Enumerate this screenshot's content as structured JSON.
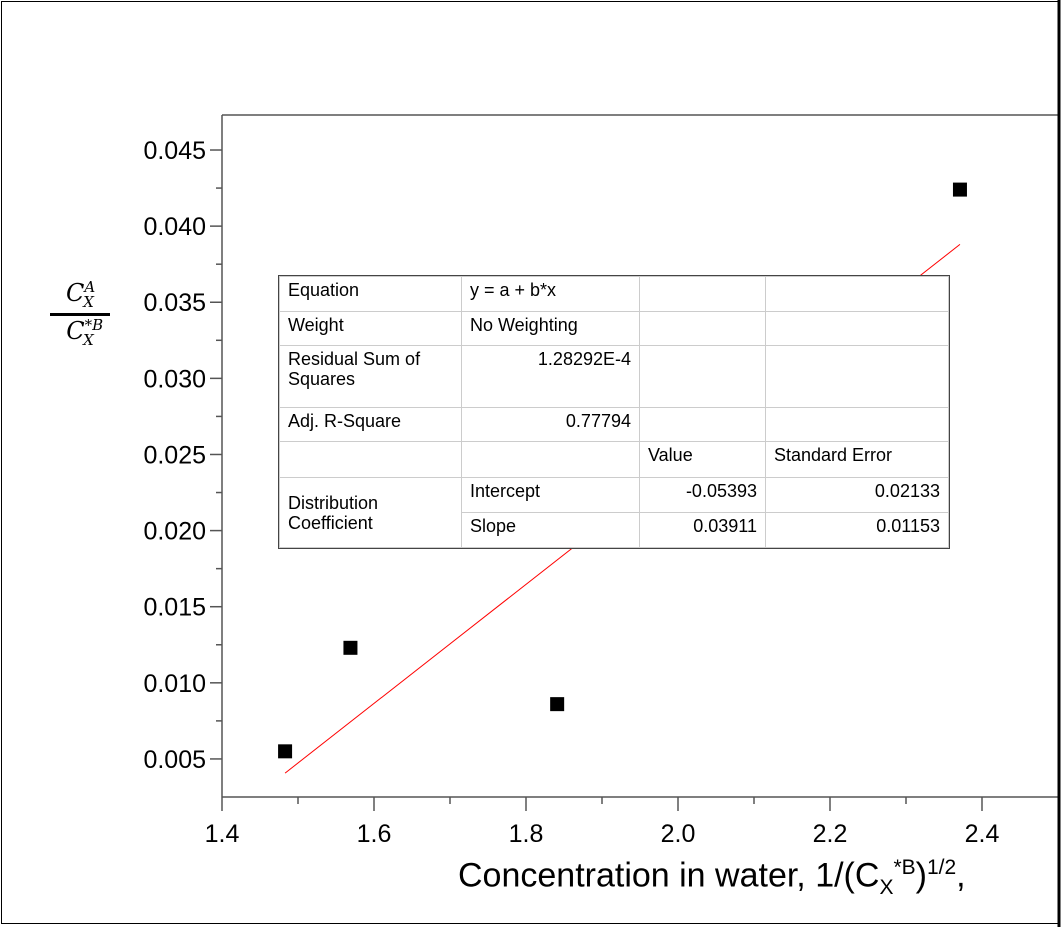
{
  "chart_data": {
    "type": "scatter",
    "xlabel": "Concentration in water, 1/(C",
    "xlabel_sub": "X",
    "xlabel_sup": "*B",
    "xlabel_tail": ")",
    "xlabel_exp": "1/2",
    "xlabel_end": ",",
    "ylabel": {
      "num_base": "C",
      "num_sub": "X",
      "num_sup": "A",
      "den_base": "C",
      "den_sub": "X",
      "den_sup": "*B"
    },
    "xlim": [
      1.4,
      2.5
    ],
    "ylim": [
      0.0025,
      0.0473
    ],
    "x_ticks": [
      "1.4",
      "1.6",
      "1.8",
      "2.0",
      "2.2",
      "2.4"
    ],
    "y_ticks": [
      "0.005",
      "0.010",
      "0.015",
      "0.020",
      "0.025",
      "0.030",
      "0.035",
      "0.040",
      "0.045"
    ],
    "grid": false,
    "points": [
      {
        "x": 1.483,
        "y": 0.0055
      },
      {
        "x": 1.569,
        "y": 0.0123
      },
      {
        "x": 1.841,
        "y": 0.0086
      },
      {
        "x": 2.371,
        "y": 0.0424
      }
    ],
    "fit": {
      "intercept": -0.05393,
      "slope": 0.03911,
      "x_range": [
        1.483,
        2.371
      ],
      "color": "#ff0000"
    },
    "marker_color": "#000000"
  },
  "fit_table": {
    "equation_label": "Equation",
    "equation": "y = a + b*x",
    "weight_label": "Weight",
    "weight": "No Weighting",
    "rss_label": "Residual Sum of Squares",
    "rss": "1.28292E-4",
    "adj_r2_label": "Adj. R-Square",
    "adj_r2": "0.77794",
    "value_header": "Value",
    "se_header": "Standard Error",
    "group_label": "Distribution Coefficient",
    "intercept_label": "Intercept",
    "intercept_value": "-0.05393",
    "intercept_se": "0.02133",
    "slope_label": "Slope",
    "slope_value": "0.03911",
    "slope_se": "0.01153"
  }
}
